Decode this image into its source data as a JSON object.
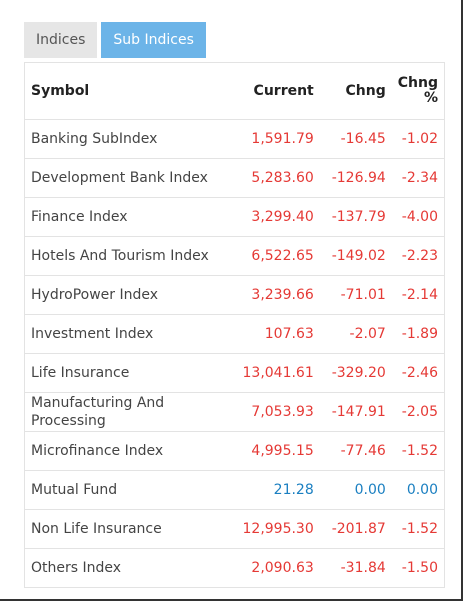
{
  "tabs": [
    "Indices",
    "Sub Indices"
  ],
  "active_tab": 1,
  "table": {
    "columns": [
      "Symbol",
      "Current",
      "Chng",
      "Chng %"
    ],
    "rows": [
      [
        "Banking SubIndex",
        "1,591.79",
        "-16.45",
        "-1.02"
      ],
      [
        "Development Bank Index",
        "5,283.60",
        "-126.94",
        "-2.34"
      ],
      [
        "Finance Index",
        "3,299.40",
        "-137.79",
        "-4.00"
      ],
      [
        "Hotels And Tourism Index",
        "6,522.65",
        "-149.02",
        "-2.23"
      ],
      [
        "HydroPower Index",
        "3,239.66",
        "-71.01",
        "-2.14"
      ],
      [
        "Investment Index",
        "107.63",
        "-2.07",
        "-1.89"
      ],
      [
        "Life Insurance",
        "13,041.61",
        "-329.20",
        "-2.46"
      ],
      [
        "Manufacturing And Processing",
        "7,053.93",
        "-147.91",
        "-2.05"
      ],
      [
        "Microfinance Index",
        "4,995.15",
        "-77.46",
        "-1.52"
      ],
      [
        "Mutual Fund",
        "21.28",
        "0.00",
        "0.00"
      ],
      [
        "Non Life Insurance",
        "12,995.30",
        "-201.87",
        "-1.52"
      ],
      [
        "Others Index",
        "2,090.63",
        "-31.84",
        "-1.50"
      ]
    ]
  }
}
